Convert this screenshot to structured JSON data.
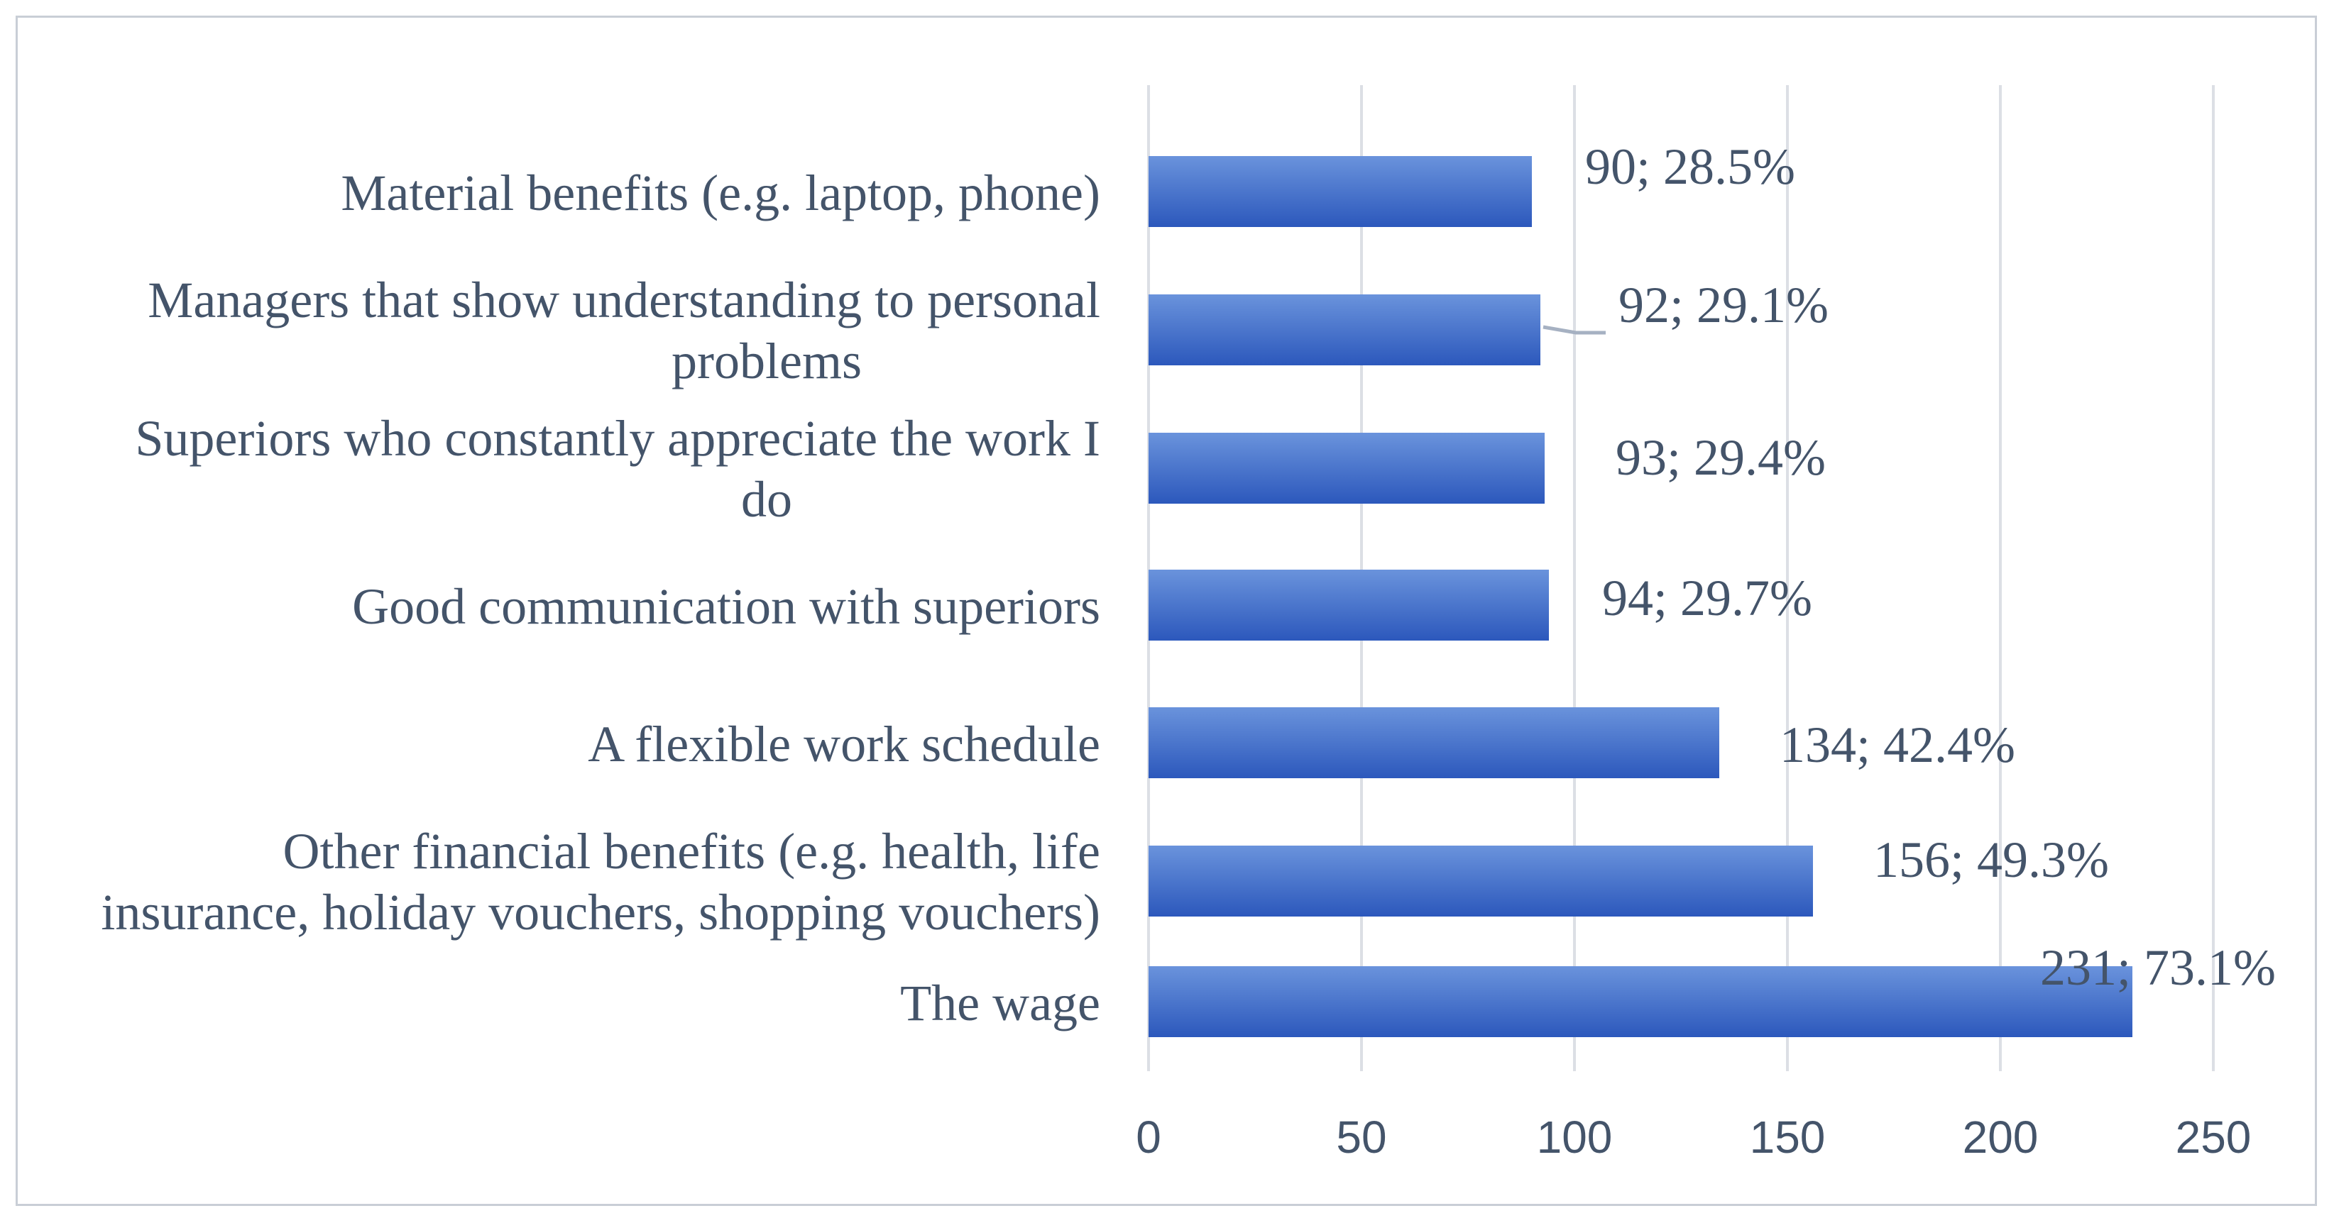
{
  "chart_data": {
    "type": "bar",
    "orientation": "horizontal",
    "categories": [
      [
        "The wage"
      ],
      [
        "Other financial benefits (e.g. health, life",
        "insurance, holiday vouchers, shopping vouchers)"
      ],
      [
        "A flexible work schedule"
      ],
      [
        "Good communication with superiors"
      ],
      [
        "Superiors who constantly appreciate the work I",
        "do"
      ],
      [
        "Managers that show understanding to personal",
        "problems"
      ],
      [
        "Material benefits (e.g. laptop, phone)"
      ]
    ],
    "values": [
      231,
      156,
      134,
      94,
      93,
      92,
      90
    ],
    "data_labels": [
      "231; 73.1%",
      "156; 49.3%",
      "134; 42.4%",
      "94; 29.7%",
      "93; 29.4%",
      "92; 29.1%",
      "90; 28.5%"
    ],
    "xlim": [
      0,
      250
    ],
    "x_ticks": [
      0,
      50,
      100,
      150,
      200,
      250
    ],
    "title": "",
    "xlabel": "",
    "ylabel": "",
    "grid": "vertical",
    "legend": "none",
    "colors": {
      "bar_light": "#5a86d6",
      "bar_dark": "#2f5cbf",
      "text": "#44546a",
      "grid": "#dcdfe5",
      "border": "#c9ced6",
      "leader_line": "#a6b1c2"
    }
  }
}
